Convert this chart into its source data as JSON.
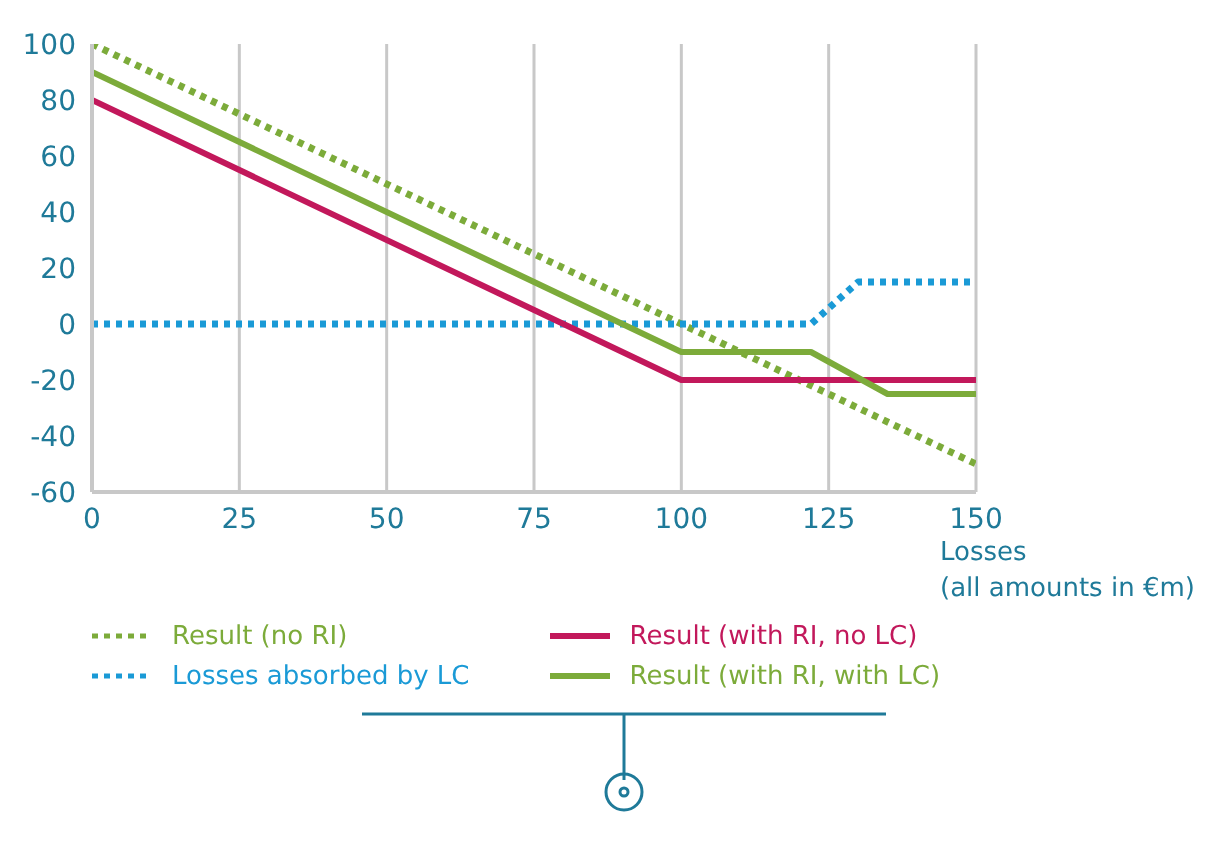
{
  "chart_data": {
    "type": "line",
    "xlabel": "Losses\n(all amounts in €m)",
    "xlim": [
      0,
      150
    ],
    "xticks": [
      0,
      25,
      50,
      75,
      100,
      125,
      150
    ],
    "ylim": [
      -60,
      100
    ],
    "yticks": [
      -60,
      -40,
      -20,
      0,
      20,
      40,
      60,
      80,
      100
    ],
    "grid": "x",
    "legend": "bottom",
    "marker": "none",
    "series": [
      {
        "name": "Result (no RI)",
        "color": "#7cab3a",
        "line_style": "dotted",
        "x": [
          0,
          150
        ],
        "values": [
          100,
          -50
        ]
      },
      {
        "name": "Losses absorbed by LC",
        "color": "#1a9ad6",
        "line_style": "dotted",
        "x": [
          0,
          122,
          130,
          150
        ],
        "values": [
          0,
          0,
          15,
          15
        ]
      },
      {
        "name": "Result (with RI, no LC)",
        "color": "#c2185b",
        "line_style": "solid",
        "x": [
          0,
          100,
          150
        ],
        "values": [
          80,
          -20,
          -20
        ]
      },
      {
        "name": "Result (with RI, with LC)",
        "color": "#7cab3a",
        "line_style": "solid",
        "x": [
          0,
          100,
          122,
          135,
          150
        ],
        "values": [
          90,
          -10,
          -10,
          -25,
          -25
        ]
      }
    ]
  }
}
